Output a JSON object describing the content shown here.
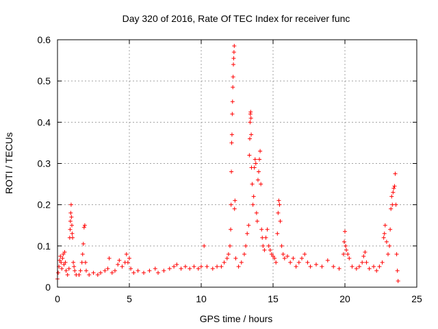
{
  "chart_data": {
    "type": "scatter",
    "title": "Day 320 of 2016, Rate Of TEC Index for receiver func",
    "xlabel": "GPS time / hours",
    "ylabel": "ROTI / TECUs",
    "xlim": [
      0,
      25
    ],
    "ylim": [
      0,
      0.6
    ],
    "x_ticks": [
      "0",
      "5",
      "10",
      "15",
      "20",
      "25"
    ],
    "y_ticks": [
      "0",
      "0.1",
      "0.2",
      "0.3",
      "0.4",
      "0.5",
      "0.6"
    ],
    "grid": true,
    "marker": "plus",
    "color": "#ff0000",
    "series": [
      {
        "points": [
          [
            0.0,
            0.02
          ],
          [
            0.05,
            0.035
          ],
          [
            0.1,
            0.05
          ],
          [
            0.15,
            0.065
          ],
          [
            0.2,
            0.075
          ],
          [
            0.25,
            0.06
          ],
          [
            0.3,
            0.045
          ],
          [
            0.35,
            0.07
          ],
          [
            0.4,
            0.08
          ],
          [
            0.45,
            0.055
          ],
          [
            0.5,
            0.085
          ],
          [
            0.55,
            0.06
          ],
          [
            0.6,
            0.04
          ],
          [
            0.7,
            0.03
          ],
          [
            0.8,
            0.045
          ],
          [
            0.85,
            0.12
          ],
          [
            0.88,
            0.14
          ],
          [
            0.9,
            0.16
          ],
          [
            0.92,
            0.18
          ],
          [
            0.95,
            0.2
          ],
          [
            0.97,
            0.17
          ],
          [
            1.0,
            0.15
          ],
          [
            1.02,
            0.13
          ],
          [
            1.05,
            0.12
          ],
          [
            1.1,
            0.06
          ],
          [
            1.15,
            0.05
          ],
          [
            1.2,
            0.04
          ],
          [
            1.3,
            0.03
          ],
          [
            1.5,
            0.03
          ],
          [
            1.6,
            0.04
          ],
          [
            1.7,
            0.06
          ],
          [
            1.75,
            0.08
          ],
          [
            1.8,
            0.105
          ],
          [
            1.85,
            0.145
          ],
          [
            1.9,
            0.15
          ],
          [
            1.95,
            0.06
          ],
          [
            2.0,
            0.04
          ],
          [
            2.2,
            0.03
          ],
          [
            2.5,
            0.035
          ],
          [
            2.8,
            0.03
          ],
          [
            3.0,
            0.035
          ],
          [
            3.3,
            0.04
          ],
          [
            3.5,
            0.045
          ],
          [
            3.6,
            0.07
          ],
          [
            3.8,
            0.035
          ],
          [
            4.0,
            0.04
          ],
          [
            4.2,
            0.055
          ],
          [
            4.3,
            0.065
          ],
          [
            4.5,
            0.05
          ],
          [
            4.7,
            0.06
          ],
          [
            4.8,
            0.08
          ],
          [
            4.9,
            0.06
          ],
          [
            5.0,
            0.07
          ],
          [
            5.1,
            0.045
          ],
          [
            5.3,
            0.035
          ],
          [
            5.6,
            0.04
          ],
          [
            6.0,
            0.035
          ],
          [
            6.4,
            0.04
          ],
          [
            6.8,
            0.045
          ],
          [
            7.0,
            0.035
          ],
          [
            7.4,
            0.04
          ],
          [
            7.8,
            0.045
          ],
          [
            8.1,
            0.05
          ],
          [
            8.3,
            0.055
          ],
          [
            8.6,
            0.045
          ],
          [
            8.9,
            0.05
          ],
          [
            9.2,
            0.045
          ],
          [
            9.5,
            0.05
          ],
          [
            9.8,
            0.045
          ],
          [
            10.0,
            0.05
          ],
          [
            10.2,
            0.1
          ],
          [
            10.4,
            0.05
          ],
          [
            10.8,
            0.045
          ],
          [
            11.1,
            0.05
          ],
          [
            11.4,
            0.05
          ],
          [
            11.6,
            0.06
          ],
          [
            11.8,
            0.07
          ],
          [
            11.9,
            0.08
          ],
          [
            12.0,
            0.1
          ],
          [
            12.05,
            0.14
          ],
          [
            12.08,
            0.2
          ],
          [
            12.1,
            0.28
          ],
          [
            12.12,
            0.35
          ],
          [
            12.14,
            0.37
          ],
          [
            12.16,
            0.42
          ],
          [
            12.18,
            0.45
          ],
          [
            12.2,
            0.485
          ],
          [
            12.22,
            0.51
          ],
          [
            12.24,
            0.54
          ],
          [
            12.26,
            0.555
          ],
          [
            12.28,
            0.57
          ],
          [
            12.3,
            0.585
          ],
          [
            12.32,
            0.19
          ],
          [
            12.35,
            0.21
          ],
          [
            12.4,
            0.07
          ],
          [
            12.6,
            0.05
          ],
          [
            12.8,
            0.06
          ],
          [
            13.0,
            0.08
          ],
          [
            13.1,
            0.1
          ],
          [
            13.2,
            0.13
          ],
          [
            13.3,
            0.15
          ],
          [
            13.35,
            0.32
          ],
          [
            13.38,
            0.36
          ],
          [
            13.4,
            0.4
          ],
          [
            13.42,
            0.42
          ],
          [
            13.44,
            0.425
          ],
          [
            13.46,
            0.41
          ],
          [
            13.48,
            0.37
          ],
          [
            13.5,
            0.29
          ],
          [
            13.55,
            0.25
          ],
          [
            13.6,
            0.2
          ],
          [
            13.65,
            0.22
          ],
          [
            13.7,
            0.29
          ],
          [
            13.75,
            0.31
          ],
          [
            13.8,
            0.3
          ],
          [
            13.85,
            0.18
          ],
          [
            13.9,
            0.16
          ],
          [
            13.95,
            0.26
          ],
          [
            14.0,
            0.28
          ],
          [
            14.05,
            0.31
          ],
          [
            14.1,
            0.33
          ],
          [
            14.15,
            0.25
          ],
          [
            14.2,
            0.14
          ],
          [
            14.25,
            0.12
          ],
          [
            14.3,
            0.1
          ],
          [
            14.4,
            0.09
          ],
          [
            14.5,
            0.12
          ],
          [
            14.6,
            0.14
          ],
          [
            14.7,
            0.1
          ],
          [
            14.8,
            0.09
          ],
          [
            14.9,
            0.08
          ],
          [
            15.0,
            0.075
          ],
          [
            15.1,
            0.07
          ],
          [
            15.2,
            0.06
          ],
          [
            15.3,
            0.13
          ],
          [
            15.35,
            0.18
          ],
          [
            15.4,
            0.21
          ],
          [
            15.45,
            0.2
          ],
          [
            15.5,
            0.16
          ],
          [
            15.6,
            0.1
          ],
          [
            15.7,
            0.08
          ],
          [
            15.8,
            0.07
          ],
          [
            16.0,
            0.075
          ],
          [
            16.2,
            0.06
          ],
          [
            16.4,
            0.07
          ],
          [
            16.6,
            0.05
          ],
          [
            16.8,
            0.06
          ],
          [
            17.0,
            0.07
          ],
          [
            17.2,
            0.08
          ],
          [
            17.4,
            0.06
          ],
          [
            17.6,
            0.05
          ],
          [
            18.0,
            0.055
          ],
          [
            18.4,
            0.05
          ],
          [
            18.8,
            0.065
          ],
          [
            19.2,
            0.05
          ],
          [
            19.6,
            0.045
          ],
          [
            19.9,
            0.08
          ],
          [
            19.95,
            0.11
          ],
          [
            20.0,
            0.135
          ],
          [
            20.05,
            0.1
          ],
          [
            20.1,
            0.09
          ],
          [
            20.2,
            0.08
          ],
          [
            20.3,
            0.07
          ],
          [
            20.5,
            0.05
          ],
          [
            20.8,
            0.045
          ],
          [
            21.0,
            0.05
          ],
          [
            21.2,
            0.06
          ],
          [
            21.3,
            0.075
          ],
          [
            21.4,
            0.085
          ],
          [
            21.5,
            0.06
          ],
          [
            21.7,
            0.045
          ],
          [
            22.0,
            0.05
          ],
          [
            22.2,
            0.04
          ],
          [
            22.4,
            0.05
          ],
          [
            22.6,
            0.06
          ],
          [
            22.7,
            0.12
          ],
          [
            22.75,
            0.13
          ],
          [
            22.8,
            0.15
          ],
          [
            22.9,
            0.11
          ],
          [
            23.0,
            0.08
          ],
          [
            23.1,
            0.1
          ],
          [
            23.15,
            0.14
          ],
          [
            23.2,
            0.19
          ],
          [
            23.25,
            0.22
          ],
          [
            23.3,
            0.2
          ],
          [
            23.35,
            0.23
          ],
          [
            23.4,
            0.24
          ],
          [
            23.45,
            0.245
          ],
          [
            23.5,
            0.275
          ],
          [
            23.55,
            0.2
          ],
          [
            23.6,
            0.08
          ],
          [
            23.65,
            0.04
          ],
          [
            23.7,
            0.015
          ]
        ]
      }
    ]
  }
}
